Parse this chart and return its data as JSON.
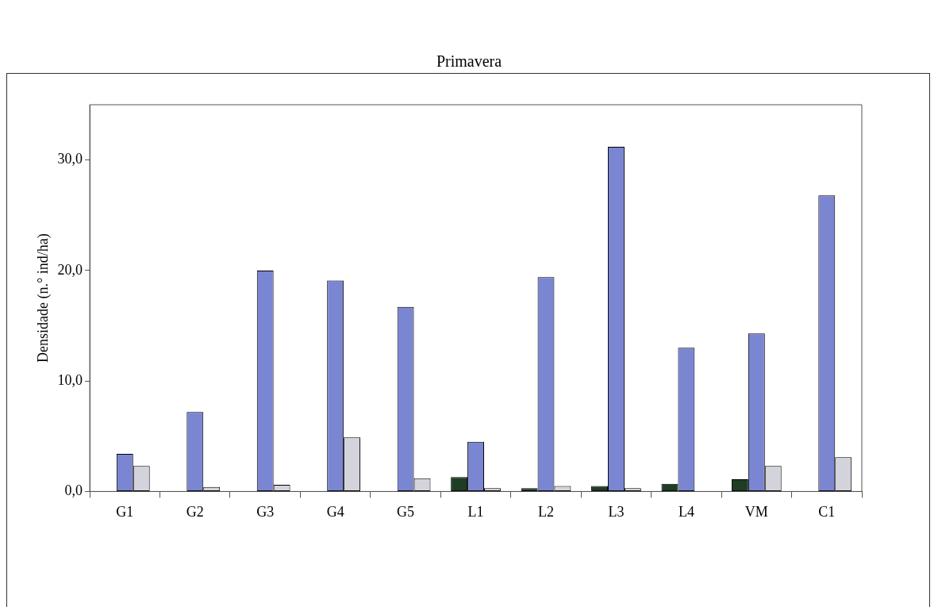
{
  "chart_data": {
    "type": "bar",
    "title": "Primavera",
    "ylabel": "Densidade (n.° ind/ha)",
    "categories": [
      "G1",
      "G2",
      "G3",
      "G4",
      "G5",
      "L1",
      "L2",
      "L3",
      "L4",
      "VM",
      "C1"
    ],
    "series": [
      {
        "color": "#1f3d24",
        "values": [
          null,
          null,
          null,
          null,
          null,
          1.3,
          0.3,
          0.5,
          0.7,
          1.1,
          null
        ]
      },
      {
        "color": "#7b86d2",
        "values": [
          3.4,
          7.2,
          20.0,
          19.1,
          16.7,
          4.5,
          19.4,
          31.2,
          13.0,
          14.3,
          26.8
        ]
      },
      {
        "color": "#d3d3dc",
        "values": [
          2.3,
          0.4,
          0.6,
          4.9,
          1.2,
          0.3,
          0.5,
          0.3,
          null,
          2.3,
          3.1
        ]
      }
    ],
    "ylim": [
      0,
      35
    ],
    "yticks": [
      {
        "value": 0,
        "label": "0,0"
      },
      {
        "value": 10,
        "label": "10,0"
      },
      {
        "value": 20,
        "label": "20,0"
      },
      {
        "value": 30,
        "label": "30,0"
      }
    ],
    "grid": false,
    "legend": false
  }
}
